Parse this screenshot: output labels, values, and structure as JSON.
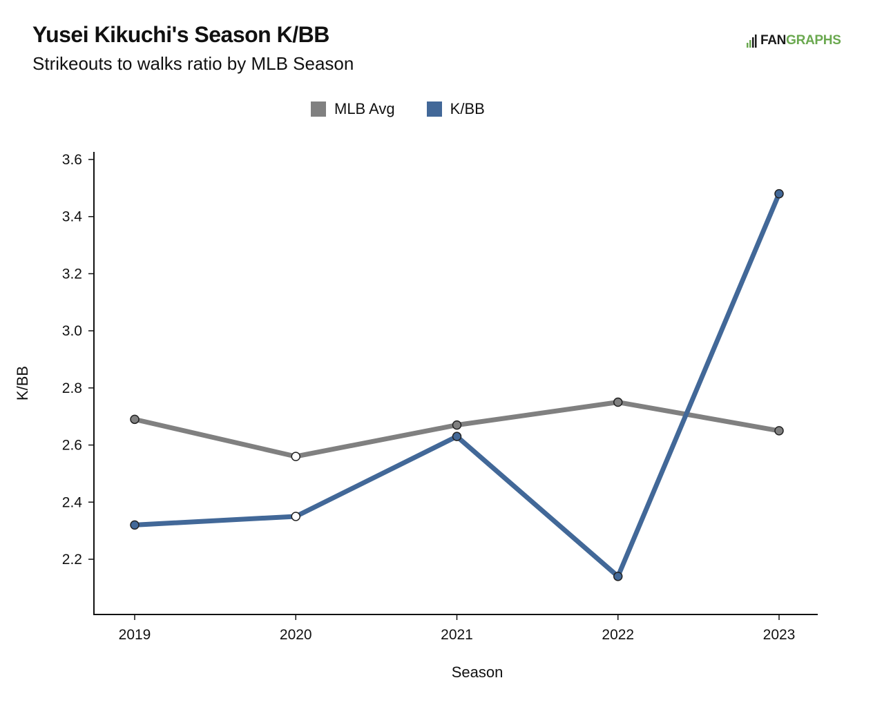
{
  "header": {
    "title": "Yusei Kikuchi's Season K/BB",
    "subtitle": "Strikeouts to walks ratio by MLB Season"
  },
  "logo": {
    "fan_text": "FAN",
    "graphs_text": "GRAPHS",
    "icon": "fangraphs-player-icon",
    "colors": {
      "fan": "#1a1a1a",
      "graphs": "#6aa84f"
    }
  },
  "chart_data": {
    "type": "line",
    "xlabel": "Season",
    "ylabel": "K/BB",
    "x": [
      "2019",
      "2020",
      "2021",
      "2022",
      "2023"
    ],
    "ylim": [
      2.0,
      3.6
    ],
    "yticks": [
      2.2,
      2.4,
      2.6,
      2.8,
      3.0,
      3.2,
      3.4,
      3.6
    ],
    "grid": false,
    "legend_position": "top-center",
    "series": [
      {
        "name": "MLB Avg",
        "color": "#808080",
        "values": [
          2.69,
          2.56,
          2.67,
          2.75,
          2.65
        ],
        "hollow_points": [
          false,
          true,
          false,
          false,
          false
        ]
      },
      {
        "name": "K/BB",
        "color": "#426898",
        "values": [
          2.32,
          2.35,
          2.63,
          2.14,
          3.48
        ],
        "hollow_points": [
          false,
          true,
          false,
          false,
          false
        ]
      }
    ]
  }
}
